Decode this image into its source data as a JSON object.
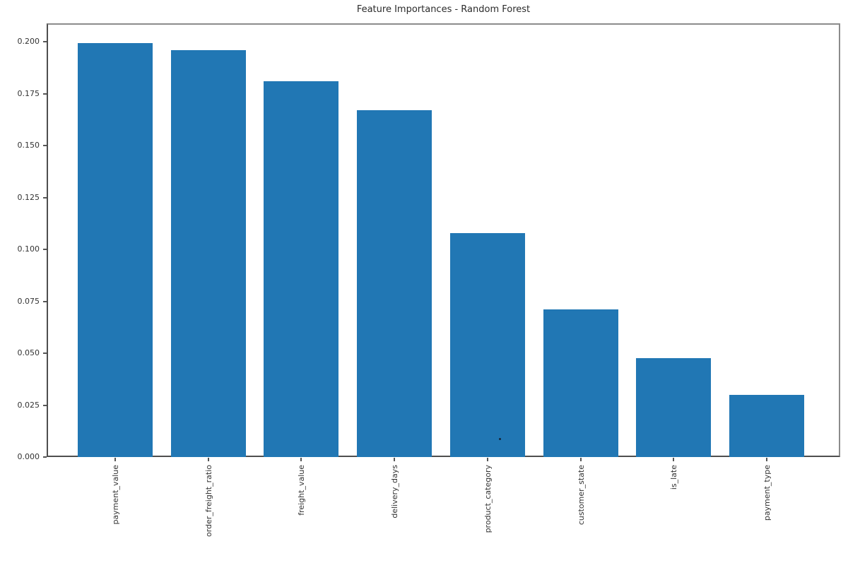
{
  "chart_data": {
    "type": "bar",
    "title": "Feature Importances - Random Forest",
    "categories": [
      "payment_value",
      "order_freight_ratio",
      "freight_value",
      "delivery_days",
      "product_category",
      "customer_state",
      "is_late",
      "payment_type"
    ],
    "values": [
      0.1995,
      0.196,
      0.181,
      0.167,
      0.108,
      0.0712,
      0.0478,
      0.03
    ],
    "xlabel": "",
    "ylabel": "",
    "ylim": [
      0,
      0.209
    ],
    "yticks": [
      "0.000",
      "0.025",
      "0.050",
      "0.075",
      "0.100",
      "0.125",
      "0.150",
      "0.175",
      "0.200"
    ],
    "ytick_values": [
      0.0,
      0.025,
      0.05,
      0.075,
      0.1,
      0.125,
      0.15,
      0.175,
      0.2
    ],
    "grid": false,
    "legend": null,
    "bar_color": "#2177b4",
    "spine_color": "#4e4e4e",
    "text_color": "#333333"
  }
}
